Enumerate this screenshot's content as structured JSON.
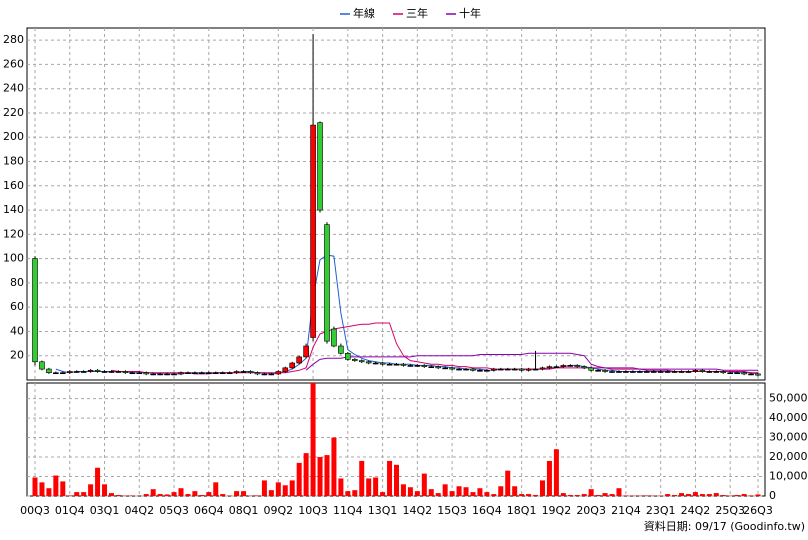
{
  "chart_data": {
    "type": "candlestick",
    "categories": [
      "00Q3",
      null,
      null,
      null,
      null,
      "01Q4",
      null,
      null,
      null,
      null,
      "03Q1",
      null,
      null,
      null,
      null,
      "04Q2",
      null,
      null,
      null,
      null,
      "05Q3",
      null,
      null,
      null,
      null,
      "06Q4",
      null,
      null,
      null,
      null,
      "08Q1",
      null,
      null,
      null,
      null,
      "09Q2",
      null,
      null,
      null,
      null,
      "10Q3",
      null,
      null,
      null,
      null,
      "11Q4",
      null,
      null,
      null,
      null,
      "13Q1",
      null,
      null,
      null,
      null,
      "14Q2",
      null,
      null,
      null,
      null,
      "15Q3",
      null,
      null,
      null,
      null,
      "16Q4",
      null,
      null,
      null,
      null,
      "18Q1",
      null,
      null,
      null,
      null,
      "19Q2",
      null,
      null,
      null,
      null,
      "20Q3",
      null,
      null,
      null,
      null,
      "21Q4",
      null,
      null,
      null,
      null,
      "23Q1",
      null,
      null,
      null,
      null,
      "24Q2",
      null,
      null,
      null,
      null,
      "25Q3",
      null,
      null,
      null,
      "26Q3"
    ],
    "open": [
      100,
      15,
      9,
      6,
      6,
      6,
      7,
      7,
      7,
      8,
      7,
      7,
      7,
      7,
      6,
      6,
      6,
      5,
      5,
      5,
      5,
      5,
      6,
      6,
      6,
      6,
      6,
      6,
      6,
      6,
      7,
      7,
      6,
      5,
      5,
      5,
      7,
      10,
      14,
      19,
      35,
      212,
      128,
      42,
      28,
      22,
      17,
      16,
      15,
      14,
      14,
      13,
      13,
      13,
      12,
      12,
      12,
      11,
      11,
      10,
      10,
      9,
      9,
      9,
      8,
      8,
      8,
      9,
      9,
      9,
      9,
      8,
      9,
      9,
      10,
      11,
      11,
      12,
      12,
      11,
      10,
      8,
      8,
      7,
      7,
      7,
      7,
      7,
      7,
      7,
      7,
      7,
      7,
      7,
      7,
      7,
      8,
      7,
      7,
      7,
      6,
      6,
      6,
      5,
      5
    ],
    "high": [
      102,
      16,
      10,
      7,
      7,
      8,
      8,
      8,
      9,
      9,
      8,
      8,
      8,
      8,
      7,
      7,
      7,
      6,
      6,
      6,
      6,
      7,
      7,
      7,
      7,
      7,
      7,
      7,
      7,
      8,
      8,
      8,
      7,
      6,
      6,
      8,
      11,
      15,
      20,
      30,
      285,
      213,
      130,
      44,
      30,
      23,
      18,
      17,
      16,
      15,
      15,
      14,
      14,
      14,
      13,
      13,
      13,
      12,
      12,
      11,
      11,
      10,
      10,
      10,
      9,
      9,
      10,
      10,
      10,
      10,
      10,
      10,
      24,
      11,
      12,
      12,
      13,
      13,
      13,
      12,
      11,
      9,
      9,
      8,
      8,
      8,
      8,
      8,
      8,
      8,
      8,
      8,
      8,
      8,
      8,
      9,
      9,
      8,
      8,
      8,
      7,
      7,
      7,
      6,
      6
    ],
    "low": [
      12,
      8,
      5,
      5,
      5,
      5,
      6,
      6,
      6,
      6,
      6,
      6,
      6,
      5,
      5,
      5,
      4,
      4,
      4,
      4,
      4,
      4,
      5,
      5,
      5,
      5,
      5,
      5,
      5,
      5,
      6,
      5,
      4,
      4,
      4,
      4,
      6,
      9,
      13,
      18,
      32,
      138,
      30,
      27,
      21,
      16,
      15,
      14,
      13,
      13,
      12,
      12,
      12,
      11,
      11,
      11,
      10,
      10,
      9,
      9,
      8,
      8,
      8,
      7,
      7,
      7,
      7,
      8,
      8,
      8,
      7,
      7,
      8,
      8,
      9,
      10,
      10,
      11,
      10,
      9,
      7,
      7,
      6,
      6,
      6,
      6,
      6,
      6,
      6,
      6,
      6,
      6,
      6,
      6,
      6,
      6,
      6,
      6,
      6,
      5,
      5,
      5,
      4,
      4,
      3
    ],
    "close": [
      15,
      9,
      6,
      6,
      6,
      7,
      7,
      7,
      8,
      7,
      7,
      7,
      7,
      6,
      6,
      6,
      5,
      5,
      5,
      5,
      5,
      6,
      6,
      6,
      6,
      6,
      6,
      6,
      6,
      7,
      7,
      6,
      5,
      5,
      5,
      7,
      10,
      14,
      19,
      28,
      210,
      140,
      32,
      28,
      22,
      17,
      16,
      15,
      14,
      14,
      13,
      13,
      13,
      12,
      12,
      12,
      11,
      11,
      10,
      10,
      9,
      9,
      9,
      8,
      8,
      8,
      9,
      9,
      9,
      9,
      8,
      9,
      9,
      10,
      11,
      11,
      12,
      12,
      11,
      10,
      8,
      8,
      7,
      7,
      7,
      7,
      7,
      7,
      7,
      7,
      7,
      7,
      7,
      7,
      7,
      8,
      7,
      7,
      7,
      6,
      6,
      6,
      5,
      5,
      4
    ],
    "up_color": "#ff0000",
    "down_color": "#33cc33",
    "ylim": [
      0,
      290
    ],
    "yticks": [
      20,
      40,
      60,
      80,
      100,
      120,
      140,
      160,
      180,
      200,
      220,
      240,
      260,
      280
    ],
    "grid": true,
    "series": [
      {
        "name": "年線",
        "color": "#1f5fd6",
        "values": [
          null,
          null,
          null,
          9,
          7,
          6,
          7,
          7,
          7,
          7,
          7,
          7,
          7,
          7,
          6,
          6,
          6,
          6,
          5,
          5,
          5,
          5,
          6,
          6,
          6,
          6,
          6,
          6,
          6,
          6,
          7,
          7,
          6,
          6,
          5,
          6,
          7,
          9,
          13,
          18,
          68,
          99,
          103,
          102,
          55,
          25,
          21,
          18,
          16,
          15,
          14,
          14,
          13,
          13,
          13,
          12,
          12,
          12,
          11,
          11,
          10,
          10,
          9,
          9,
          9,
          8,
          8,
          9,
          9,
          9,
          9,
          9,
          9,
          9,
          10,
          10,
          11,
          12,
          12,
          11,
          10,
          9,
          8,
          8,
          7,
          7,
          7,
          7,
          7,
          7,
          7,
          7,
          7,
          7,
          7,
          7,
          7,
          7,
          7,
          7,
          7,
          6,
          6,
          6,
          5
        ]
      },
      {
        "name": "三年",
        "color": "#d4006a",
        "values": [
          null,
          null,
          null,
          null,
          null,
          null,
          null,
          null,
          null,
          null,
          null,
          8,
          7,
          7,
          7,
          7,
          6,
          6,
          6,
          6,
          6,
          6,
          6,
          5,
          5,
          5,
          6,
          6,
          6,
          6,
          6,
          6,
          6,
          6,
          6,
          6,
          6,
          7,
          8,
          10,
          27,
          38,
          40,
          42,
          43,
          44,
          45,
          46,
          46,
          47,
          47,
          47,
          30,
          20,
          16,
          15,
          14,
          13,
          13,
          12,
          12,
          11,
          11,
          10,
          10,
          10,
          9,
          9,
          9,
          9,
          9,
          9,
          9,
          9,
          9,
          10,
          10,
          10,
          10,
          10,
          10,
          10,
          10,
          9,
          9,
          9,
          9,
          9,
          8,
          8,
          8,
          8,
          7,
          7,
          7,
          7,
          7,
          7,
          7,
          7,
          7,
          7,
          7,
          6,
          6
        ]
      },
      {
        "name": "十年",
        "color": "#8b00b0",
        "values": [
          null,
          null,
          null,
          null,
          null,
          null,
          null,
          null,
          null,
          null,
          null,
          null,
          null,
          null,
          null,
          null,
          null,
          null,
          null,
          null,
          null,
          null,
          null,
          null,
          null,
          null,
          null,
          null,
          null,
          null,
          null,
          null,
          null,
          null,
          null,
          null,
          null,
          null,
          null,
          8,
          13,
          17,
          18,
          18,
          18,
          19,
          19,
          19,
          19,
          19,
          19,
          19,
          19,
          19,
          19,
          20,
          20,
          20,
          20,
          20,
          20,
          20,
          20,
          20,
          21,
          21,
          21,
          21,
          21,
          21,
          21,
          22,
          22,
          22,
          22,
          22,
          22,
          22,
          21,
          20,
          13,
          11,
          10,
          10,
          10,
          10,
          10,
          9,
          9,
          9,
          9,
          9,
          9,
          9,
          9,
          9,
          9,
          9,
          9,
          8,
          8,
          8,
          8,
          8,
          8
        ]
      }
    ],
    "volume": {
      "color": "#ff0000",
      "values": [
        9500,
        7000,
        4000,
        10500,
        7500,
        300,
        2000,
        2000,
        6000,
        14500,
        6000,
        1500,
        500,
        200,
        300,
        100,
        1000,
        3500,
        1000,
        800,
        2000,
        4000,
        1000,
        2500,
        500,
        2000,
        7000,
        1000,
        200,
        2500,
        2500,
        200,
        300,
        8000,
        3000,
        7000,
        5500,
        8000,
        17000,
        22000,
        58000,
        20000,
        21000,
        30000,
        9000,
        2500,
        3000,
        18000,
        9000,
        9500,
        2000,
        18000,
        16000,
        6000,
        4500,
        2500,
        11500,
        3500,
        1500,
        6000,
        2500,
        5000,
        4500,
        2000,
        4000,
        2000,
        1000,
        5000,
        13000,
        5000,
        1000,
        1000,
        500,
        8000,
        18000,
        24000,
        1500,
        500,
        500,
        1000,
        3500,
        500,
        1500,
        1000,
        4000,
        300,
        200,
        200,
        300,
        200,
        200,
        1000,
        500,
        1500,
        1000,
        2000,
        1000,
        1000,
        1500,
        500,
        200,
        500,
        1000,
        300,
        800
      ],
      "ylim": [
        0,
        58000
      ],
      "yticks": [
        0,
        {
          "value": 10000,
          "label": "10,000"
        },
        {
          "value": 20000,
          "label": "20,000"
        },
        {
          "value": 30000,
          "label": "30,000"
        },
        {
          "value": 40000,
          "label": "40,000"
        },
        {
          "value": 50000,
          "label": "50,000"
        }
      ]
    },
    "source": "資料日期: 09/17 (Goodinfo.tw)"
  }
}
